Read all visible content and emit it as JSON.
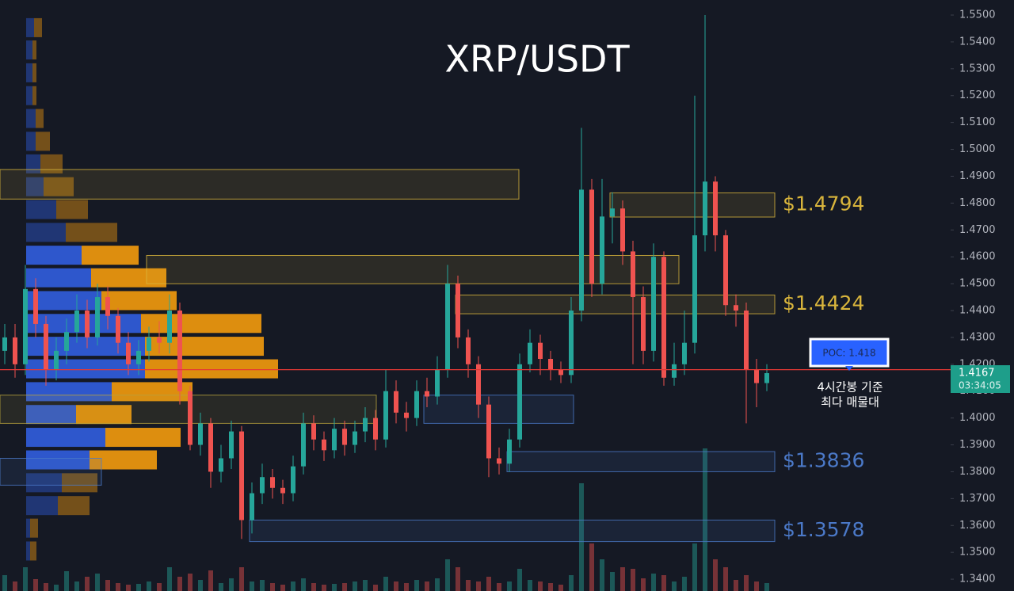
{
  "chart_data": {
    "type": "candlestick",
    "title": "XRP/USDT",
    "ylim": [
      1.3356,
      1.5556
    ],
    "yticks": [
      {
        "value": 1.55,
        "label": "1.5500"
      },
      {
        "value": 1.54,
        "label": "1.5400"
      },
      {
        "value": 1.53,
        "label": "1.5300"
      },
      {
        "value": 1.52,
        "label": "1.5200"
      },
      {
        "value": 1.51,
        "label": "1.5100"
      },
      {
        "value": 1.5,
        "label": "1.5000"
      },
      {
        "value": 1.49,
        "label": "1.4900"
      },
      {
        "value": 1.48,
        "label": "1.4800"
      },
      {
        "value": 1.47,
        "label": "1.4700"
      },
      {
        "value": 1.46,
        "label": "1.4600"
      },
      {
        "value": 1.45,
        "label": "1.4500"
      },
      {
        "value": 1.44,
        "label": "1.4400"
      },
      {
        "value": 1.43,
        "label": "1.4300"
      },
      {
        "value": 1.42,
        "label": "1.4200"
      },
      {
        "value": 1.41,
        "label": "1.4100"
      },
      {
        "value": 1.4,
        "label": "1.4000"
      },
      {
        "value": 1.39,
        "label": "1.3900"
      },
      {
        "value": 1.38,
        "label": "1.3800"
      },
      {
        "value": 1.37,
        "label": "1.3700"
      },
      {
        "value": 1.36,
        "label": "1.3600"
      },
      {
        "value": 1.35,
        "label": "1.3500"
      },
      {
        "value": 1.34,
        "label": "1.3400"
      }
    ],
    "grid": false,
    "up_color": "#26a69a",
    "down_color": "#ef5350",
    "open": [
      1.425,
      1.43,
      1.42,
      1.448,
      1.435,
      1.418,
      1.425,
      1.432,
      1.44,
      1.43,
      1.445,
      1.438,
      1.428,
      1.42,
      1.425,
      1.43,
      1.428,
      1.44,
      1.41,
      1.39,
      1.398,
      1.38,
      1.385,
      1.395,
      1.362,
      1.372,
      1.378,
      1.374,
      1.372,
      1.382,
      1.398,
      1.392,
      1.388,
      1.396,
      1.39,
      1.395,
      1.4,
      1.392,
      1.41,
      1.402,
      1.4,
      1.41,
      1.408,
      1.418,
      1.45,
      1.43,
      1.42,
      1.405,
      1.385,
      1.383,
      1.392,
      1.42,
      1.428,
      1.422,
      1.418,
      1.416,
      1.44,
      1.485,
      1.45,
      1.475,
      1.478,
      1.462,
      1.445,
      1.425,
      1.46,
      1.415,
      1.42,
      1.428,
      1.468,
      1.488,
      1.468,
      1.442,
      1.44,
      1.418,
      1.413
    ],
    "high": [
      1.435,
      1.435,
      1.457,
      1.452,
      1.438,
      1.43,
      1.437,
      1.446,
      1.444,
      1.45,
      1.449,
      1.441,
      1.432,
      1.429,
      1.434,
      1.436,
      1.446,
      1.443,
      1.412,
      1.402,
      1.4,
      1.39,
      1.399,
      1.397,
      1.376,
      1.383,
      1.381,
      1.377,
      1.386,
      1.402,
      1.401,
      1.395,
      1.4,
      1.399,
      1.399,
      1.404,
      1.403,
      1.418,
      1.414,
      1.406,
      1.414,
      1.415,
      1.423,
      1.457,
      1.453,
      1.433,
      1.423,
      1.408,
      1.389,
      1.396,
      1.424,
      1.433,
      1.431,
      1.425,
      1.421,
      1.445,
      1.508,
      1.489,
      1.489,
      1.484,
      1.481,
      1.466,
      1.449,
      1.465,
      1.462,
      1.428,
      1.44,
      1.52,
      1.55,
      1.49,
      1.47,
      1.446,
      1.443,
      1.422,
      1.42
    ],
    "low": [
      1.42,
      1.415,
      1.416,
      1.43,
      1.412,
      1.414,
      1.42,
      1.428,
      1.426,
      1.427,
      1.433,
      1.424,
      1.416,
      1.416,
      1.421,
      1.424,
      1.424,
      1.405,
      1.388,
      1.386,
      1.374,
      1.376,
      1.381,
      1.355,
      1.357,
      1.368,
      1.37,
      1.368,
      1.369,
      1.379,
      1.388,
      1.384,
      1.385,
      1.386,
      1.387,
      1.391,
      1.388,
      1.389,
      1.398,
      1.395,
      1.397,
      1.404,
      1.405,
      1.415,
      1.426,
      1.415,
      1.4,
      1.378,
      1.379,
      1.38,
      1.389,
      1.417,
      1.416,
      1.414,
      1.413,
      1.413,
      1.436,
      1.445,
      1.446,
      1.465,
      1.457,
      1.42,
      1.42,
      1.421,
      1.412,
      1.412,
      1.416,
      1.424,
      1.462,
      1.462,
      1.438,
      1.434,
      1.398,
      1.404,
      1.41
    ],
    "close": [
      1.43,
      1.42,
      1.448,
      1.435,
      1.418,
      1.425,
      1.432,
      1.44,
      1.43,
      1.445,
      1.438,
      1.428,
      1.42,
      1.425,
      1.43,
      1.428,
      1.44,
      1.41,
      1.39,
      1.398,
      1.38,
      1.385,
      1.395,
      1.362,
      1.372,
      1.378,
      1.374,
      1.372,
      1.382,
      1.398,
      1.392,
      1.388,
      1.396,
      1.39,
      1.395,
      1.4,
      1.392,
      1.41,
      1.402,
      1.4,
      1.41,
      1.408,
      1.418,
      1.45,
      1.43,
      1.42,
      1.405,
      1.385,
      1.383,
      1.392,
      1.42,
      1.428,
      1.422,
      1.418,
      1.416,
      1.44,
      1.485,
      1.45,
      1.475,
      1.478,
      1.462,
      1.445,
      1.425,
      1.46,
      1.415,
      1.42,
      1.428,
      1.468,
      1.488,
      1.468,
      1.442,
      1.44,
      1.418,
      1.413,
      1.4167
    ],
    "volume": [
      20,
      12,
      30,
      15,
      10,
      8,
      25,
      12,
      18,
      22,
      14,
      10,
      8,
      9,
      12,
      10,
      30,
      18,
      22,
      14,
      26,
      10,
      16,
      30,
      12,
      14,
      10,
      8,
      12,
      16,
      10,
      8,
      9,
      10,
      12,
      14,
      8,
      18,
      12,
      10,
      14,
      12,
      16,
      40,
      30,
      14,
      12,
      18,
      10,
      12,
      28,
      14,
      12,
      10,
      8,
      20,
      136,
      60,
      40,
      24,
      30,
      28,
      16,
      22,
      20,
      12,
      18,
      60,
      180,
      40,
      30,
      14,
      20,
      12,
      10
    ],
    "volume_profile": {
      "levels": [
        1.5453,
        1.537,
        1.5285,
        1.52,
        1.5115,
        1.503,
        1.4946,
        1.4861,
        1.4776,
        1.4691,
        1.4606,
        1.4522,
        1.4437,
        1.4352,
        1.4267,
        1.4183,
        1.4098,
        1.4013,
        1.3928,
        1.3844,
        1.3759,
        1.3674,
        1.359,
        1.3505
      ],
      "buy": [
        10,
        8,
        8,
        8,
        12,
        12,
        18,
        22,
        38,
        50,
        70,
        82,
        95,
        145,
        150,
        150,
        108,
        63,
        100,
        80,
        45,
        40,
        5,
        5
      ],
      "sell": [
        10,
        5,
        5,
        5,
        10,
        18,
        28,
        38,
        40,
        65,
        72,
        95,
        95,
        152,
        150,
        168,
        102,
        70,
        95,
        85,
        45,
        40,
        10,
        8
      ],
      "buy_color": "#2f5bd6",
      "sell_color": "#e8950f"
    },
    "zones": [
      {
        "low": 1.4815,
        "high": 1.4925,
        "color": "#d9b53c"
      },
      {
        "low": 1.4748,
        "high": 1.4838,
        "color": "#d9b53c",
        "label": "$1.4794"
      },
      {
        "low": 1.45,
        "high": 1.4605,
        "color": "#d9b53c"
      },
      {
        "low": 1.4388,
        "high": 1.4458,
        "color": "#d9b53c",
        "label": "$1.4424"
      },
      {
        "low": 1.398,
        "high": 1.4085,
        "color": "#b9a23c"
      },
      {
        "low": 1.398,
        "high": 1.4085,
        "color": "#4b79c8"
      },
      {
        "low": 1.38,
        "high": 1.3875,
        "color": "#4b79c8",
        "label": "$1.3836"
      },
      {
        "low": 1.375,
        "high": 1.385,
        "color": "#4b79c8"
      },
      {
        "low": 1.354,
        "high": 1.362,
        "color": "#4b79c8",
        "label": "$1.3578"
      }
    ],
    "poc": {
      "value": 1.418,
      "label": "POC: 1.418"
    },
    "countdown": "03:34:05",
    "annotation": [
      "4시간봉 기준",
      "최다 매물대"
    ]
  }
}
